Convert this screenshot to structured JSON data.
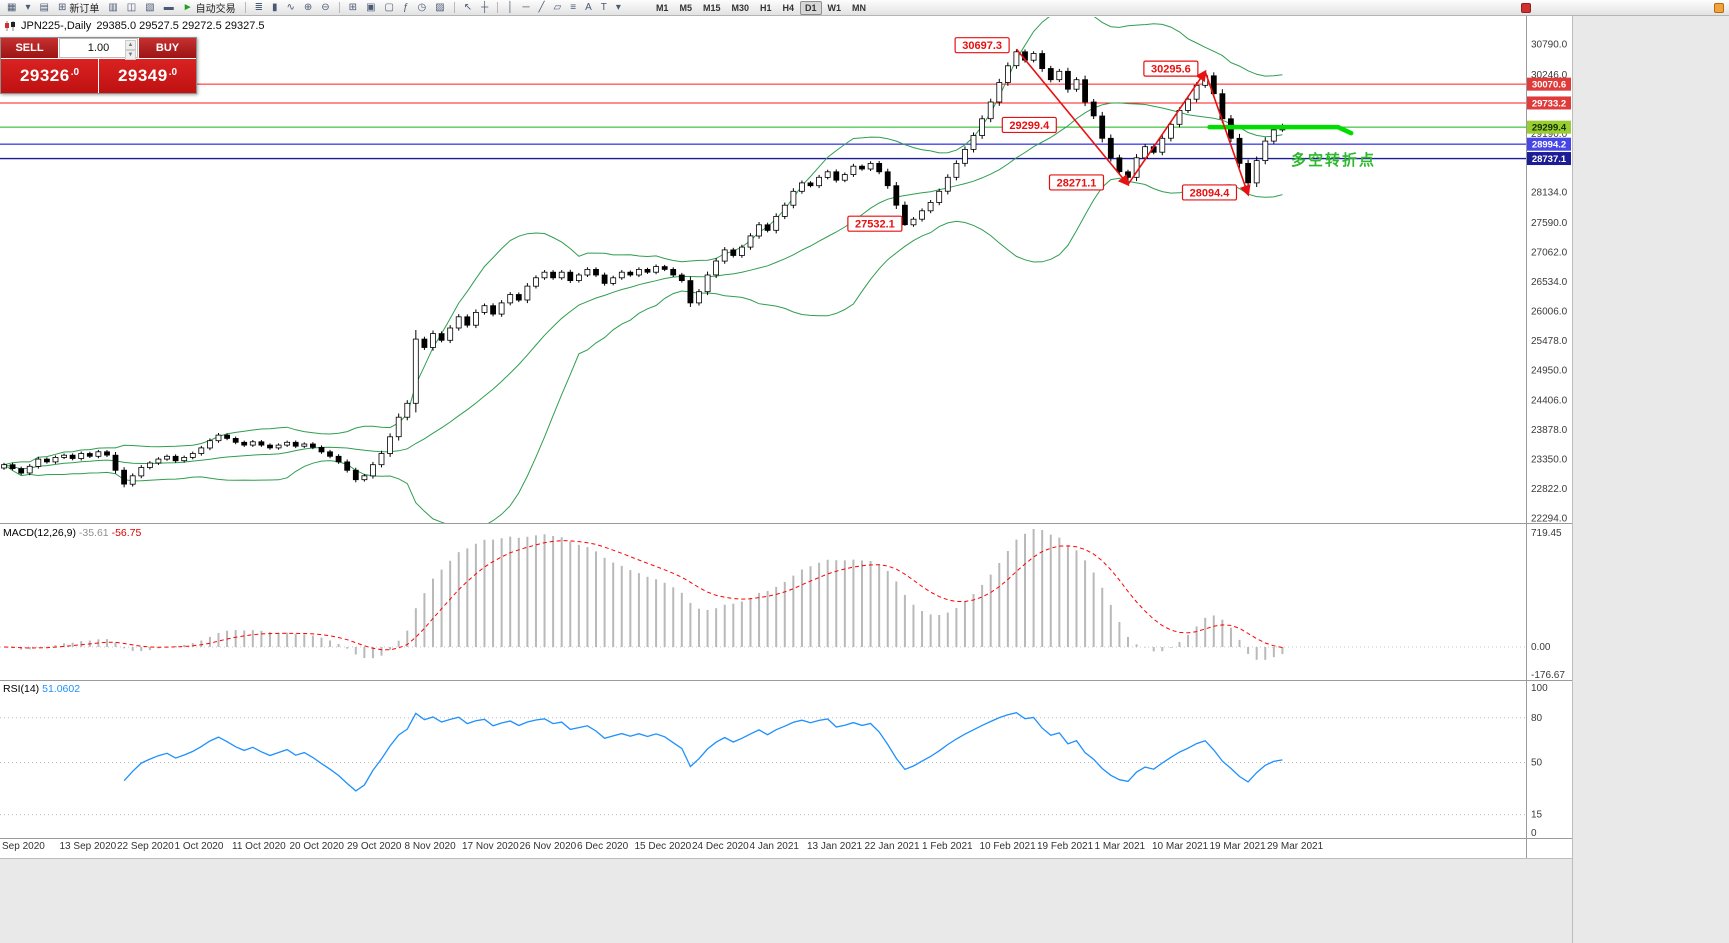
{
  "toolbar": {
    "items": [
      {
        "n": "new-chart-icon",
        "g": "▦"
      },
      {
        "n": "chart-list-dropdown-icon",
        "g": "▾"
      },
      {
        "n": "profiles-icon",
        "g": "▤"
      },
      {
        "n": "new-order-button",
        "g": "⊞",
        "label": "新订单"
      },
      {
        "n": "market-watch-icon",
        "g": "▥"
      },
      {
        "n": "data-window-icon",
        "g": "◫"
      },
      {
        "n": "navigator-icon",
        "g": "▧"
      },
      {
        "n": "terminal-icon",
        "g": "▬"
      },
      {
        "n": "autotrade-button",
        "g": "►",
        "gc": "#1fa01f",
        "label": "自动交易"
      },
      {
        "n": "sep"
      },
      {
        "n": "bar-chart-icon",
        "g": "≣"
      },
      {
        "n": "candlestick-chart-icon",
        "g": "▮"
      },
      {
        "n": "line-chart-icon",
        "g": "∿"
      },
      {
        "n": "zoom-in-icon",
        "g": "⊕"
      },
      {
        "n": "zoom-out-icon",
        "g": "⊖"
      },
      {
        "n": "sep"
      },
      {
        "n": "tile-windows-icon",
        "g": "⊞"
      },
      {
        "n": "cascade-windows-icon",
        "g": "▣"
      },
      {
        "n": "auto-arrange-icon",
        "g": "▢"
      },
      {
        "n": "indicators-icon",
        "g": "ƒ"
      },
      {
        "n": "periods-icon",
        "g": "◷"
      },
      {
        "n": "template-icon",
        "g": "▨"
      },
      {
        "n": "sep"
      },
      {
        "n": "cursor-icon",
        "g": "↖"
      },
      {
        "n": "crosshair-icon",
        "g": "┼"
      },
      {
        "n": "sep"
      },
      {
        "n": "vertical-line-icon",
        "g": "│"
      },
      {
        "n": "horizontal-line-icon",
        "g": "─"
      },
      {
        "n": "trendline-icon",
        "g": "╱"
      },
      {
        "n": "channel-icon",
        "g": "▱"
      },
      {
        "n": "fibonacci-icon",
        "g": "≡"
      },
      {
        "n": "text-icon",
        "g": "A"
      },
      {
        "n": "label-icon",
        "g": "T"
      },
      {
        "n": "arrows-icon",
        "g": "▾"
      }
    ],
    "timeframes": [
      "M1",
      "M5",
      "M15",
      "M30",
      "H1",
      "H4",
      "D1",
      "W1",
      "MN"
    ],
    "active_timeframe": "D1"
  },
  "chart_header": {
    "symbol_period": "JPN225-,Daily",
    "ohlc": "29385.0 29527.5 29272.5 29327.5"
  },
  "trade_panel": {
    "sell_label": "SELL",
    "buy_label": "BUY",
    "volume": "1.00",
    "sell_big": "29326",
    "sell_sup": ".0",
    "buy_big": "29349",
    "buy_sup": ".0"
  },
  "panels": {
    "macd": {
      "title": "MACD(12,26,9)",
      "value_main": "-35.61",
      "value_signal": "-56.75",
      "scale_labels": [
        "719.45",
        "0.00",
        "-176.67"
      ],
      "histogram_color": "#b9b9b9",
      "signal_color": "#ff0000",
      "fast": 12,
      "slow": 26,
      "signal": 9
    },
    "rsi": {
      "title": "RSI(14)",
      "value": "51.0602",
      "scale_labels": [
        "100",
        "80",
        "50",
        "15",
        "0"
      ],
      "level_lines": [
        80,
        50,
        15
      ],
      "line_color": "#1E90FF",
      "period": 14
    }
  },
  "chart_data": {
    "type": "candlestick",
    "symbol": "JPN225-",
    "period": "Daily",
    "y_axis": {
      "top_value": 30790.0,
      "bottom_value": 22294.0
    },
    "price_ticks": [
      "30790.0",
      "30246.0",
      "29190.0",
      "28134.0",
      "27590.0",
      "27062.0",
      "26534.0",
      "26006.0",
      "25478.0",
      "24950.0",
      "24406.0",
      "23878.0",
      "23350.0",
      "22822.0",
      "22294.0"
    ],
    "time_labels": [
      "Sep 2020",
      "13 Sep 2020",
      "22 Sep 2020",
      "1 Oct 2020",
      "11 Oct 2020",
      "20 Oct 2020",
      "29 Oct 2020",
      "8 Nov 2020",
      "17 Nov 2020",
      "26 Nov 2020",
      "6 Dec 2020",
      "15 Dec 2020",
      "24 Dec 2020",
      "4 Jan 2021",
      "13 Jan 2021",
      "22 Jan 2021",
      "1 Feb 2021",
      "10 Feb 2021",
      "19 Feb 2021",
      "1 Mar 2021",
      "10 Mar 2021",
      "19 Mar 2021",
      "29 Mar 2021"
    ],
    "candles_close": [
      23250,
      23180,
      23100,
      23220,
      23350,
      23300,
      23380,
      23420,
      23360,
      23450,
      23400,
      23480,
      23420,
      23150,
      22900,
      23050,
      23200,
      23280,
      23350,
      23400,
      23320,
      23380,
      23450,
      23550,
      23680,
      23780,
      23720,
      23650,
      23600,
      23660,
      23600,
      23550,
      23600,
      23650,
      23580,
      23620,
      23560,
      23480,
      23400,
      23300,
      23150,
      22980,
      23050,
      23250,
      23450,
      23750,
      24100,
      24350,
      25500,
      25350,
      25600,
      25480,
      25700,
      25900,
      25750,
      25980,
      26100,
      25950,
      26150,
      26300,
      26200,
      26450,
      26600,
      26700,
      26600,
      26700,
      26550,
      26650,
      26750,
      26650,
      26500,
      26600,
      26700,
      26650,
      26750,
      26700,
      26800,
      26750,
      26650,
      26550,
      26150,
      26350,
      26650,
      26900,
      27100,
      27000,
      27150,
      27350,
      27550,
      27450,
      27700,
      27900,
      28150,
      28300,
      28250,
      28400,
      28500,
      28350,
      28450,
      28600,
      28550,
      28650,
      28500,
      28250,
      27900,
      27550,
      27650,
      27800,
      27950,
      28150,
      28400,
      28650,
      28900,
      29150,
      29450,
      29750,
      30100,
      30400,
      30650,
      30500,
      30620,
      30350,
      30150,
      30300,
      29980,
      30150,
      29750,
      29500,
      29100,
      28750,
      28500,
      28400,
      28750,
      28950,
      28850,
      29100,
      29350,
      29600,
      29800,
      30050,
      30220,
      29900,
      29450,
      29100,
      28650,
      28300,
      28700,
      29050,
      29250,
      29327.5
    ],
    "extremes": {
      "105": {
        "low": 27532.1
      },
      "118": {
        "high": 30697.3
      },
      "131": {
        "low": 28271.1
      },
      "140": {
        "high": 30295.6
      },
      "145": {
        "low": 28094.4
      }
    },
    "bollinger": {
      "period": 20,
      "deviation": 2,
      "color": "#2f9e4f"
    },
    "levels": [
      {
        "value": 30070.6,
        "line": "#ff1a1a",
        "width": 1,
        "badge_bg": "#df3b3b",
        "badge_fg": "#ffffff"
      },
      {
        "value": 29733.2,
        "line": "#ff1a1a",
        "width": 1,
        "badge_bg": "#df3b3b",
        "badge_fg": "#ffffff"
      },
      {
        "value": 29299.4,
        "line": "#18b418",
        "width": 1,
        "badge_bg": "#9acd32",
        "badge_fg": "#103000"
      },
      {
        "value": 28994.2,
        "line": "#4646e8",
        "width": 1.4,
        "badge_bg": "#4646e8",
        "badge_fg": "#ffffff"
      },
      {
        "value": 28737.1,
        "line": "#1c1c96",
        "width": 1.4,
        "badge_bg": "#1c1c96",
        "badge_fg": "#ffffff"
      }
    ],
    "turn_line": {
      "value": 29299.4,
      "i1": 140.5,
      "i2": 155.5,
      "color": "#00dd00"
    },
    "trend_lines": [
      [
        118,
        30697.3,
        131,
        28271.1
      ],
      [
        131,
        28271.1,
        140,
        30295.6
      ],
      [
        140,
        30295.6,
        145,
        28094.4
      ]
    ],
    "annotations": [
      {
        "text": "30697.3",
        "i": 114.0,
        "p": 30760
      },
      {
        "text": "30295.6",
        "i": 136.0,
        "p": 30340
      },
      {
        "text": "29299.4",
        "i": 119.5,
        "p": 29330
      },
      {
        "text": "28271.1",
        "i": 125.0,
        "p": 28300
      },
      {
        "text": "28094.4",
        "i": 140.5,
        "p": 28120
      },
      {
        "text": "27532.1",
        "i": 101.5,
        "p": 27560
      }
    ],
    "note": {
      "text": "多空转折点",
      "i": 150,
      "p": 28620,
      "color": "#2db82d"
    }
  }
}
